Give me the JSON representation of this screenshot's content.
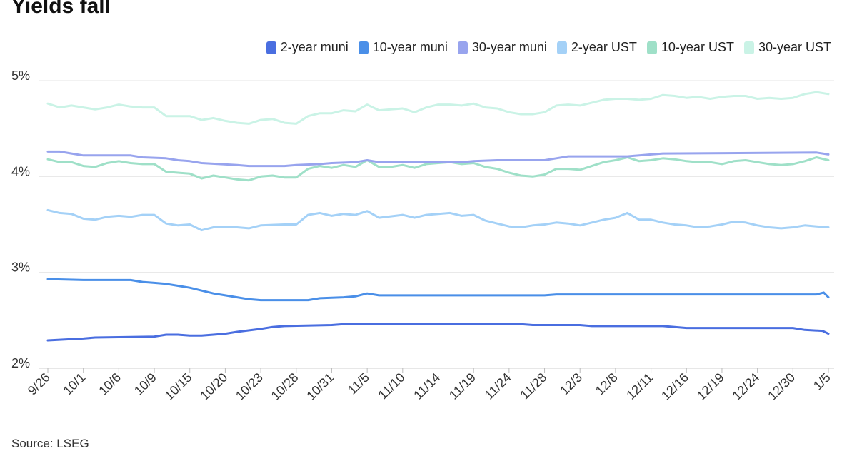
{
  "title": "Yields fall",
  "source": "Source: LSEG",
  "chart_data": {
    "type": "line",
    "title": "Yields fall",
    "xlabel": "",
    "ylabel": "",
    "ylim": [
      2,
      5
    ],
    "yticks": [
      2,
      3,
      4,
      5
    ],
    "ytick_labels": [
      "2%",
      "3%",
      "4%",
      "5%"
    ],
    "grid": true,
    "legend_position": "top-right",
    "x_tick_labels": [
      "9/26",
      "10/1",
      "10/6",
      "10/9",
      "10/15",
      "10/20",
      "10/23",
      "10/28",
      "10/31",
      "11/5",
      "11/10",
      "11/14",
      "11/19",
      "11/24",
      "11/28",
      "12/3",
      "12/8",
      "12/11",
      "12/16",
      "12/19",
      "12/24",
      "12/30",
      "1/5"
    ],
    "x_tick_positions": [
      0,
      3,
      6,
      9,
      12,
      15,
      18,
      21,
      24,
      27,
      30,
      33,
      36,
      39,
      42,
      45,
      48,
      51,
      54,
      57,
      60,
      63,
      66
    ],
    "x_max": 66,
    "series": [
      {
        "name": "2-year muni",
        "color": "#4a6ee0",
        "points": [
          [
            0,
            2.29
          ],
          [
            3,
            2.31
          ],
          [
            4,
            2.32
          ],
          [
            9,
            2.33
          ],
          [
            10,
            2.35
          ],
          [
            11,
            2.35
          ],
          [
            12,
            2.34
          ],
          [
            13,
            2.34
          ],
          [
            14,
            2.35
          ],
          [
            15,
            2.36
          ],
          [
            16,
            2.38
          ],
          [
            18,
            2.41
          ],
          [
            19,
            2.43
          ],
          [
            20,
            2.44
          ],
          [
            24,
            2.45
          ],
          [
            25,
            2.46
          ],
          [
            40,
            2.46
          ],
          [
            41,
            2.45
          ],
          [
            45,
            2.45
          ],
          [
            46,
            2.44
          ],
          [
            52,
            2.44
          ],
          [
            53,
            2.43
          ],
          [
            54,
            2.42
          ],
          [
            63,
            2.42
          ],
          [
            64,
            2.4
          ],
          [
            65.5,
            2.39
          ],
          [
            66,
            2.36
          ]
        ]
      },
      {
        "name": "10-year muni",
        "color": "#4a8fe8",
        "points": [
          [
            0,
            2.93
          ],
          [
            3,
            2.92
          ],
          [
            7,
            2.92
          ],
          [
            8,
            2.9
          ],
          [
            9,
            2.89
          ],
          [
            10,
            2.88
          ],
          [
            12,
            2.84
          ],
          [
            13,
            2.81
          ],
          [
            14,
            2.78
          ],
          [
            15,
            2.76
          ],
          [
            16,
            2.74
          ],
          [
            17,
            2.72
          ],
          [
            18,
            2.71
          ],
          [
            22,
            2.71
          ],
          [
            23,
            2.73
          ],
          [
            25,
            2.74
          ],
          [
            26,
            2.75
          ],
          [
            27,
            2.78
          ],
          [
            28,
            2.76
          ],
          [
            42,
            2.76
          ],
          [
            43,
            2.77
          ],
          [
            53,
            2.77
          ],
          [
            54,
            2.77
          ],
          [
            65,
            2.77
          ],
          [
            65.6,
            2.79
          ],
          [
            66,
            2.74
          ]
        ]
      },
      {
        "name": "30-year muni",
        "color": "#98a4ee",
        "points": [
          [
            0,
            4.26
          ],
          [
            1,
            4.26
          ],
          [
            2,
            4.24
          ],
          [
            3,
            4.22
          ],
          [
            7,
            4.22
          ],
          [
            8,
            4.2
          ],
          [
            10,
            4.19
          ],
          [
            11,
            4.17
          ],
          [
            12,
            4.16
          ],
          [
            13,
            4.14
          ],
          [
            16,
            4.12
          ],
          [
            17,
            4.11
          ],
          [
            20,
            4.11
          ],
          [
            21,
            4.12
          ],
          [
            23,
            4.13
          ],
          [
            24,
            4.14
          ],
          [
            26,
            4.15
          ],
          [
            27,
            4.17
          ],
          [
            28,
            4.15
          ],
          [
            35,
            4.15
          ],
          [
            36,
            4.16
          ],
          [
            38,
            4.17
          ],
          [
            42,
            4.17
          ],
          [
            43,
            4.19
          ],
          [
            44,
            4.21
          ],
          [
            49,
            4.21
          ],
          [
            51,
            4.23
          ],
          [
            52,
            4.24
          ],
          [
            65,
            4.25
          ],
          [
            66,
            4.23
          ]
        ]
      },
      {
        "name": "2-year UST",
        "color": "#a4d1f7",
        "points": [
          [
            0,
            3.65
          ],
          [
            1,
            3.62
          ],
          [
            2,
            3.61
          ],
          [
            3,
            3.56
          ],
          [
            4,
            3.55
          ],
          [
            5,
            3.58
          ],
          [
            6,
            3.59
          ],
          [
            7,
            3.58
          ],
          [
            8,
            3.6
          ],
          [
            9,
            3.6
          ],
          [
            10,
            3.51
          ],
          [
            11,
            3.49
          ],
          [
            12,
            3.5
          ],
          [
            13,
            3.44
          ],
          [
            14,
            3.47
          ],
          [
            16,
            3.47
          ],
          [
            17,
            3.46
          ],
          [
            18,
            3.49
          ],
          [
            20,
            3.5
          ],
          [
            21,
            3.5
          ],
          [
            22,
            3.6
          ],
          [
            23,
            3.62
          ],
          [
            24,
            3.59
          ],
          [
            25,
            3.61
          ],
          [
            26,
            3.6
          ],
          [
            27,
            3.64
          ],
          [
            28,
            3.57
          ],
          [
            30,
            3.6
          ],
          [
            31,
            3.57
          ],
          [
            32,
            3.6
          ],
          [
            33,
            3.61
          ],
          [
            34,
            3.62
          ],
          [
            35,
            3.59
          ],
          [
            36,
            3.6
          ],
          [
            37,
            3.54
          ],
          [
            38,
            3.51
          ],
          [
            39,
            3.48
          ],
          [
            40,
            3.47
          ],
          [
            41,
            3.49
          ],
          [
            42,
            3.5
          ],
          [
            43,
            3.52
          ],
          [
            44,
            3.51
          ],
          [
            45,
            3.49
          ],
          [
            46,
            3.52
          ],
          [
            47,
            3.55
          ],
          [
            48,
            3.57
          ],
          [
            49,
            3.62
          ],
          [
            50,
            3.55
          ],
          [
            51,
            3.55
          ],
          [
            52,
            3.52
          ],
          [
            53,
            3.5
          ],
          [
            54,
            3.49
          ],
          [
            55,
            3.47
          ],
          [
            56,
            3.48
          ],
          [
            57,
            3.5
          ],
          [
            58,
            3.53
          ],
          [
            59,
            3.52
          ],
          [
            60,
            3.49
          ],
          [
            61,
            3.47
          ],
          [
            62,
            3.46
          ],
          [
            63,
            3.47
          ],
          [
            64,
            3.49
          ],
          [
            65,
            3.48
          ],
          [
            66,
            3.47
          ]
        ]
      },
      {
        "name": "10-year UST",
        "color": "#9fe0c8",
        "points": [
          [
            0,
            4.18
          ],
          [
            1,
            4.15
          ],
          [
            2,
            4.15
          ],
          [
            3,
            4.11
          ],
          [
            4,
            4.1
          ],
          [
            5,
            4.14
          ],
          [
            6,
            4.16
          ],
          [
            7,
            4.14
          ],
          [
            8,
            4.13
          ],
          [
            9,
            4.13
          ],
          [
            10,
            4.05
          ],
          [
            11,
            4.04
          ],
          [
            12,
            4.03
          ],
          [
            13,
            3.98
          ],
          [
            14,
            4.01
          ],
          [
            15,
            3.99
          ],
          [
            16,
            3.97
          ],
          [
            17,
            3.96
          ],
          [
            18,
            4.0
          ],
          [
            19,
            4.01
          ],
          [
            20,
            3.99
          ],
          [
            21,
            3.99
          ],
          [
            22,
            4.08
          ],
          [
            23,
            4.11
          ],
          [
            24,
            4.09
          ],
          [
            25,
            4.12
          ],
          [
            26,
            4.1
          ],
          [
            27,
            4.17
          ],
          [
            28,
            4.1
          ],
          [
            29,
            4.1
          ],
          [
            30,
            4.12
          ],
          [
            31,
            4.09
          ],
          [
            32,
            4.13
          ],
          [
            33,
            4.14
          ],
          [
            34,
            4.15
          ],
          [
            35,
            4.13
          ],
          [
            36,
            4.14
          ],
          [
            37,
            4.1
          ],
          [
            38,
            4.08
          ],
          [
            39,
            4.04
          ],
          [
            40,
            4.01
          ],
          [
            41,
            4.0
          ],
          [
            42,
            4.02
          ],
          [
            43,
            4.08
          ],
          [
            44,
            4.08
          ],
          [
            45,
            4.07
          ],
          [
            46,
            4.11
          ],
          [
            47,
            4.15
          ],
          [
            48,
            4.17
          ],
          [
            49,
            4.2
          ],
          [
            50,
            4.16
          ],
          [
            51,
            4.17
          ],
          [
            52,
            4.19
          ],
          [
            53,
            4.18
          ],
          [
            54,
            4.16
          ],
          [
            55,
            4.15
          ],
          [
            56,
            4.15
          ],
          [
            57,
            4.13
          ],
          [
            58,
            4.16
          ],
          [
            59,
            4.17
          ],
          [
            60,
            4.15
          ],
          [
            61,
            4.13
          ],
          [
            62,
            4.12
          ],
          [
            63,
            4.13
          ],
          [
            64,
            4.16
          ],
          [
            65,
            4.2
          ],
          [
            66,
            4.17
          ]
        ]
      },
      {
        "name": "30-year UST",
        "color": "#caf3e6",
        "points": [
          [
            0,
            4.76
          ],
          [
            1,
            4.72
          ],
          [
            2,
            4.74
          ],
          [
            3,
            4.72
          ],
          [
            4,
            4.7
          ],
          [
            5,
            4.72
          ],
          [
            6,
            4.75
          ],
          [
            7,
            4.73
          ],
          [
            8,
            4.72
          ],
          [
            9,
            4.72
          ],
          [
            10,
            4.63
          ],
          [
            11,
            4.63
          ],
          [
            12,
            4.63
          ],
          [
            13,
            4.59
          ],
          [
            14,
            4.61
          ],
          [
            15,
            4.58
          ],
          [
            16,
            4.56
          ],
          [
            17,
            4.55
          ],
          [
            18,
            4.59
          ],
          [
            19,
            4.6
          ],
          [
            20,
            4.56
          ],
          [
            21,
            4.55
          ],
          [
            22,
            4.63
          ],
          [
            23,
            4.66
          ],
          [
            24,
            4.66
          ],
          [
            25,
            4.69
          ],
          [
            26,
            4.68
          ],
          [
            27,
            4.75
          ],
          [
            28,
            4.69
          ],
          [
            29,
            4.7
          ],
          [
            30,
            4.71
          ],
          [
            31,
            4.67
          ],
          [
            32,
            4.72
          ],
          [
            33,
            4.75
          ],
          [
            34,
            4.75
          ],
          [
            35,
            4.74
          ],
          [
            36,
            4.76
          ],
          [
            37,
            4.72
          ],
          [
            38,
            4.71
          ],
          [
            39,
            4.67
          ],
          [
            40,
            4.65
          ],
          [
            41,
            4.65
          ],
          [
            42,
            4.67
          ],
          [
            43,
            4.74
          ],
          [
            44,
            4.75
          ],
          [
            45,
            4.74
          ],
          [
            46,
            4.77
          ],
          [
            47,
            4.8
          ],
          [
            48,
            4.81
          ],
          [
            49,
            4.81
          ],
          [
            50,
            4.8
          ],
          [
            51,
            4.81
          ],
          [
            52,
            4.85
          ],
          [
            53,
            4.84
          ],
          [
            54,
            4.82
          ],
          [
            55,
            4.83
          ],
          [
            56,
            4.81
          ],
          [
            57,
            4.83
          ],
          [
            58,
            4.84
          ],
          [
            59,
            4.84
          ],
          [
            60,
            4.81
          ],
          [
            61,
            4.82
          ],
          [
            62,
            4.81
          ],
          [
            63,
            4.82
          ],
          [
            64,
            4.86
          ],
          [
            65,
            4.88
          ],
          [
            66,
            4.86
          ]
        ]
      }
    ]
  }
}
